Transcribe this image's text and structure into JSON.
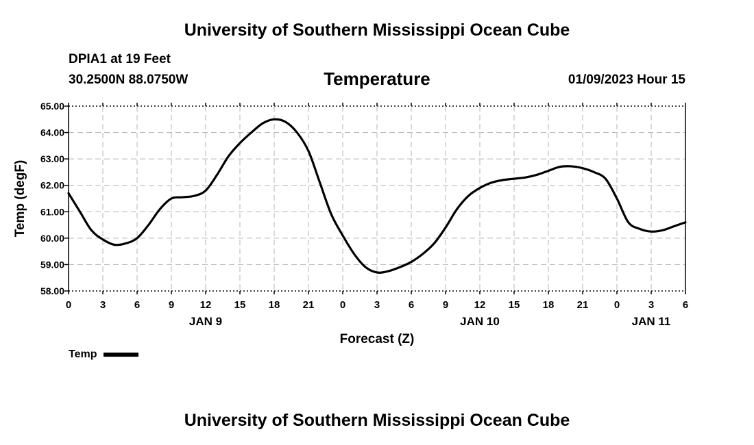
{
  "header": {
    "title_top": "University of Southern Mississippi Ocean Cube",
    "station": "DPIA1 at 19 Feet",
    "coords": "30.2500N  88.0750W",
    "variable": "Temperature",
    "datetime": "01/09/2023 Hour 15"
  },
  "footer": {
    "title_bottom": "University of Southern Mississippi Ocean Cube"
  },
  "colors": {
    "line": "#000000",
    "grid": "#b3b3b3",
    "axis": "#000000"
  },
  "chart_data": {
    "type": "line",
    "title": "Temperature",
    "xlabel": "Forecast (Z)",
    "ylabel": "Temp (degF)",
    "xlim": [
      0,
      54
    ],
    "ylim": [
      58,
      65
    ],
    "y_ticks": [
      "58.00",
      "59.00",
      "60.00",
      "61.00",
      "62.00",
      "63.00",
      "64.00",
      "65.00"
    ],
    "x_ticks": [
      "0",
      "3",
      "6",
      "9",
      "12",
      "15",
      "18",
      "21",
      "0",
      "3",
      "6",
      "9",
      "12",
      "15",
      "18",
      "21",
      "0",
      "3",
      "6"
    ],
    "date_labels": [
      {
        "label": "JAN 9",
        "hour": 12
      },
      {
        "label": "JAN 10",
        "hour": 36
      },
      {
        "label": "JAN 11",
        "hour": 51
      }
    ],
    "grid": true,
    "legend": {
      "position": "bottom-left",
      "entries": [
        "Temp"
      ]
    },
    "series": [
      {
        "name": "Temp",
        "x": [
          0,
          1,
          2,
          3,
          4,
          5,
          6,
          7,
          8,
          9,
          10,
          11,
          12,
          13,
          14,
          15,
          16,
          17,
          18,
          19,
          20,
          21,
          22,
          23,
          24,
          25,
          26,
          27,
          28,
          29,
          30,
          31,
          32,
          33,
          34,
          35,
          36,
          37,
          38,
          39,
          40,
          41,
          42,
          43,
          44,
          45,
          46,
          47,
          48,
          49,
          50,
          51,
          52,
          53,
          54
        ],
        "values": [
          61.7,
          61.0,
          60.3,
          59.95,
          59.75,
          59.8,
          60.0,
          60.5,
          61.1,
          61.5,
          61.55,
          61.6,
          61.8,
          62.4,
          63.1,
          63.6,
          64.0,
          64.35,
          64.5,
          64.4,
          64.0,
          63.3,
          62.1,
          60.9,
          60.1,
          59.4,
          58.9,
          58.7,
          58.75,
          58.9,
          59.1,
          59.4,
          59.8,
          60.4,
          61.1,
          61.6,
          61.9,
          62.1,
          62.2,
          62.25,
          62.3,
          62.4,
          62.55,
          62.7,
          62.72,
          62.65,
          62.5,
          62.25,
          61.5,
          60.6,
          60.35,
          60.25,
          60.3,
          60.45,
          60.6
        ]
      }
    ]
  }
}
